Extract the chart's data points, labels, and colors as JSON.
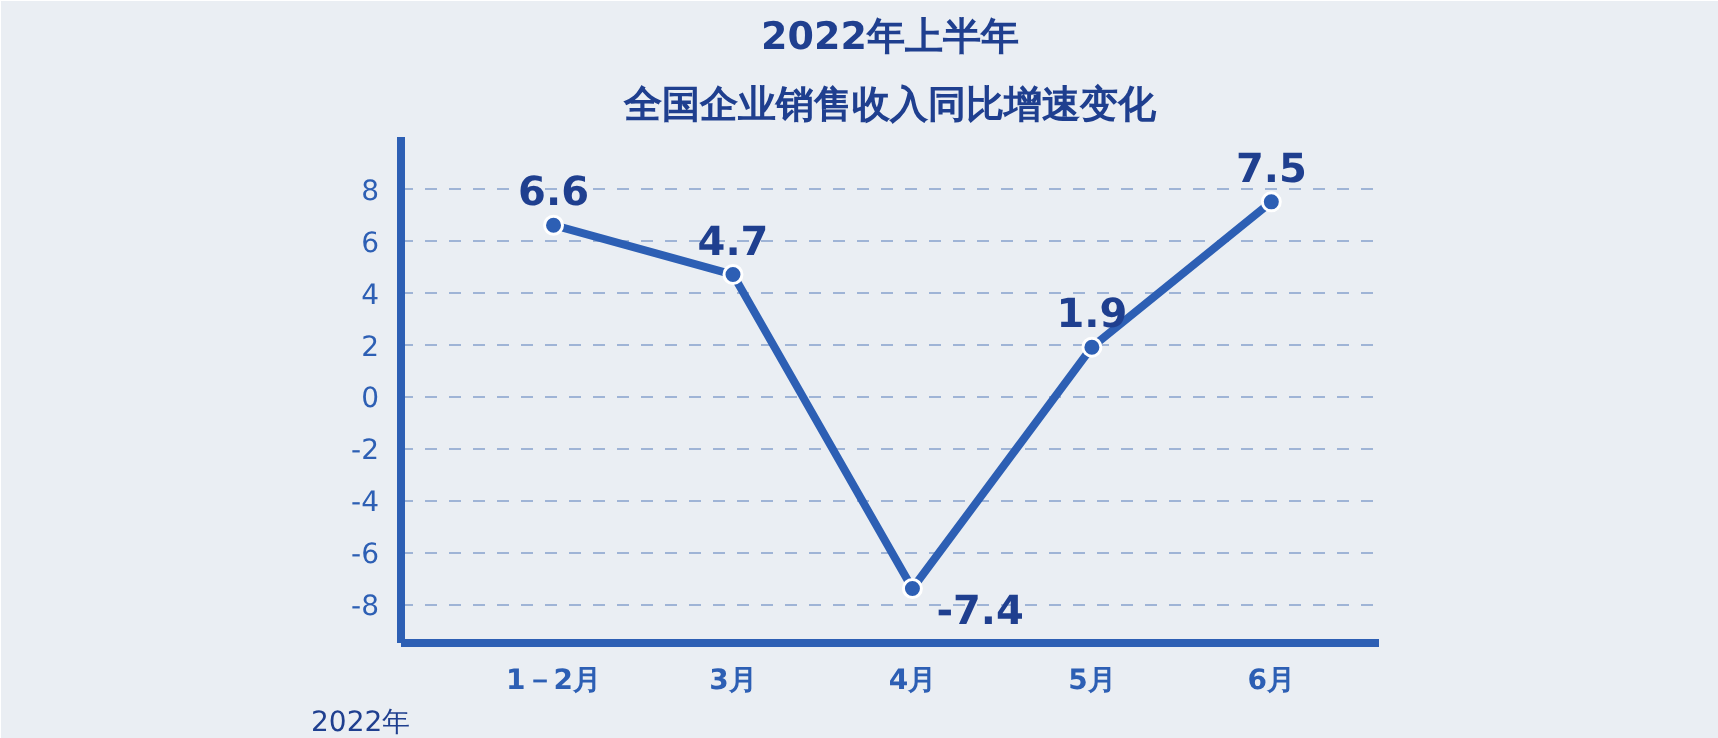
{
  "chart_data": {
    "type": "line",
    "title": "2022年上半年",
    "subtitle": "全国企业销售收入同比增速变化",
    "categories": [
      "1－2月",
      "3月",
      "4月",
      "5月",
      "6月"
    ],
    "series": [
      {
        "color": "#2d5fb4",
        "values": [
          6.6,
          4.7,
          -7.4,
          1.9,
          7.5
        ]
      }
    ],
    "ylim": [
      -9.5,
      10
    ],
    "yticks": [
      -8,
      -6,
      -4,
      -2,
      0,
      2,
      4,
      6,
      8
    ],
    "grid": "y",
    "data_labels": true,
    "marker": "circle",
    "line_style": "solid",
    "annotations": [
      "2022年"
    ]
  }
}
